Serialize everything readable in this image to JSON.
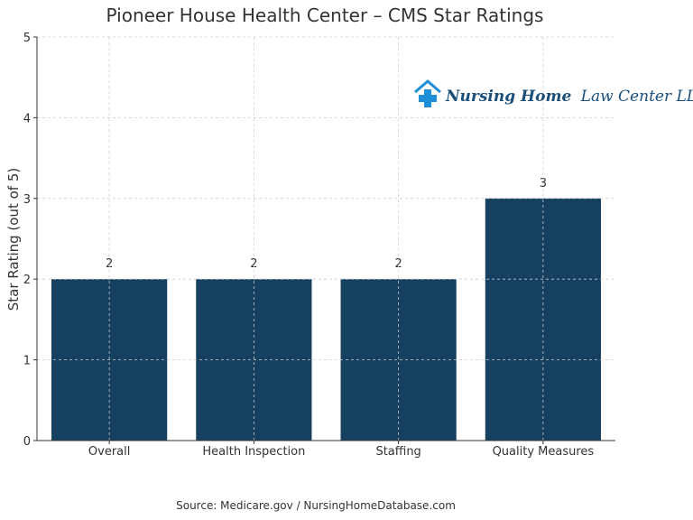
{
  "chart_data": {
    "type": "bar",
    "title": "Pioneer House Health Center – CMS Star Ratings",
    "xlabel": "",
    "ylabel": "Star Rating (out of 5)",
    "categories": [
      "Overall",
      "Health Inspection",
      "Staffing",
      "Quality Measures"
    ],
    "values": [
      2,
      2,
      2,
      3
    ],
    "ylim": [
      0,
      5
    ],
    "yticks": [
      0,
      1,
      2,
      3,
      4,
      5
    ],
    "grid": true,
    "bar_color": "#16405f"
  },
  "logo": {
    "name_bold": "Nursing Home",
    "name_rest": "Law Center LLC",
    "color": "#1a4f7a",
    "cross_color": "#1e8fd6"
  },
  "source": "Source: Medicare.gov / NursingHomeDatabase.com"
}
